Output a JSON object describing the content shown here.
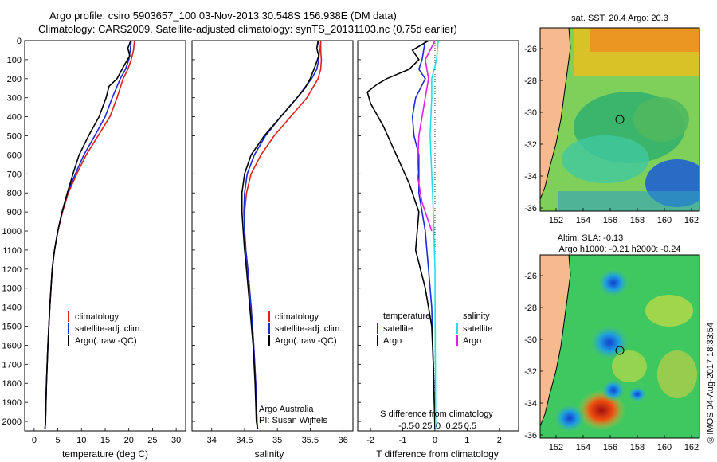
{
  "header": {
    "title_line1": "Argo profile: csiro 5903657_100 03-Nov-2013 30.548S 156.938E (DM data)",
    "title_line2": "Climatology: CARS2009. Satellite-adjusted climatology: synTS_20131103.nc (0.75d earlier)"
  },
  "stamp": "©IMOS 04-Aug-2017 18:33:54",
  "colors": {
    "climatology": "#e0201c",
    "satellite": "#1c2ad8",
    "argo": "#000000",
    "salinity_satellite": "#22e0e6",
    "salinity_argo": "#e020e0",
    "land": "#f7b98e",
    "coast": "#000000"
  },
  "chart_data": [
    {
      "type": "line",
      "name": "temperature-profile",
      "xlabel": "temperature (deg C)",
      "ylabel": "",
      "xlim": [
        -2,
        32
      ],
      "ylim": [
        2050,
        0
      ],
      "x_ticks": [
        0,
        5,
        10,
        15,
        20,
        25,
        30
      ],
      "y_ticks": [
        0,
        100,
        200,
        300,
        400,
        500,
        600,
        700,
        800,
        900,
        1000,
        1100,
        1200,
        1300,
        1400,
        1500,
        1600,
        1700,
        1800,
        1900,
        2000
      ],
      "legend": [
        "climatology",
        "satellite-adj. clim.",
        "Argo(..raw -QC)"
      ],
      "series": [
        {
          "name": "climatology",
          "color_key": "climatology",
          "x": [
            21.2,
            21.0,
            20.5,
            19.8,
            18.8,
            17.5,
            16.0,
            13.5,
            11.0,
            9.0,
            7.2,
            6.0,
            5.0,
            4.3,
            3.8,
            3.3,
            2.9,
            2.6,
            2.4,
            2.3
          ],
          "y": [
            0,
            50,
            100,
            150,
            200,
            300,
            400,
            500,
            600,
            700,
            800,
            900,
            1000,
            1100,
            1200,
            1400,
            1600,
            1800,
            2000,
            2040
          ]
        },
        {
          "name": "satellite-adj. clim.",
          "color_key": "satellite",
          "x": [
            20.5,
            20.3,
            20.0,
            19.3,
            18.2,
            16.5,
            15.0,
            12.8,
            10.5,
            8.7,
            7.0,
            5.9,
            5.0,
            4.3,
            3.8,
            3.3,
            2.9,
            2.6,
            2.4,
            2.3
          ],
          "y": [
            0,
            50,
            100,
            150,
            200,
            300,
            400,
            500,
            600,
            700,
            800,
            900,
            1000,
            1100,
            1200,
            1400,
            1600,
            1800,
            2000,
            2040
          ]
        },
        {
          "name": "Argo",
          "color_key": "argo",
          "x": [
            20.4,
            19.8,
            20.2,
            19.0,
            17.5,
            15.8,
            15.2,
            13.7,
            11.5,
            9.5,
            8.2,
            7.0,
            5.9,
            5.0,
            4.3,
            3.8,
            3.3,
            2.9,
            2.6,
            2.4,
            2.3
          ],
          "y": [
            0,
            40,
            80,
            130,
            200,
            240,
            300,
            400,
            500,
            600,
            700,
            800,
            900,
            1000,
            1100,
            1200,
            1400,
            1600,
            1800,
            2000,
            2040
          ]
        }
      ]
    },
    {
      "type": "line",
      "name": "salinity-profile",
      "xlabel": "salinity",
      "xlim": [
        33.7,
        36.15
      ],
      "ylim": [
        2050,
        0
      ],
      "x_ticks": [
        34,
        34.5,
        35,
        35.5,
        36
      ],
      "legend": [
        "climatology",
        "satellite-adj. clim.",
        "Argo(..raw -QC)"
      ],
      "annotation_line1": "Argo Australia",
      "annotation_line2": "PI: Susan Wijffels",
      "series": [
        {
          "name": "climatology",
          "color_key": "climatology",
          "x": [
            35.66,
            35.66,
            35.67,
            35.66,
            35.62,
            35.45,
            35.2,
            34.95,
            34.75,
            34.6,
            34.53,
            34.5,
            34.5,
            34.52,
            34.55,
            34.6,
            34.64,
            34.67,
            34.69,
            34.7
          ],
          "y": [
            0,
            50,
            100,
            150,
            200,
            300,
            400,
            500,
            600,
            700,
            800,
            900,
            1000,
            1100,
            1200,
            1400,
            1600,
            1800,
            2000,
            2040
          ]
        },
        {
          "name": "satellite-adj. clim.",
          "color_key": "satellite",
          "x": [
            35.63,
            35.64,
            35.63,
            35.6,
            35.52,
            35.3,
            35.05,
            34.82,
            34.65,
            34.54,
            34.5,
            34.49,
            34.5,
            34.52,
            34.55,
            34.6,
            34.64,
            34.67,
            34.69,
            34.7
          ],
          "y": [
            0,
            50,
            100,
            150,
            200,
            300,
            400,
            500,
            600,
            700,
            800,
            900,
            1000,
            1100,
            1200,
            1400,
            1600,
            1800,
            2000,
            2040
          ]
        },
        {
          "name": "Argo",
          "color_key": "argo",
          "x": [
            35.62,
            35.6,
            35.63,
            35.58,
            35.5,
            35.42,
            35.3,
            35.05,
            34.8,
            34.6,
            34.5,
            34.46,
            34.46,
            34.48,
            34.5,
            34.53,
            34.58,
            34.63,
            34.66,
            34.68,
            34.7
          ],
          "y": [
            0,
            40,
            80,
            130,
            200,
            250,
            300,
            400,
            500,
            600,
            700,
            800,
            900,
            1000,
            1100,
            1200,
            1400,
            1600,
            1800,
            2000,
            2040
          ]
        }
      ]
    },
    {
      "type": "line",
      "name": "difference-profile",
      "xlabel": "T difference from climatology",
      "xlabel_top": "S difference from climatology",
      "xlim": [
        -2.4,
        2.6
      ],
      "ylim": [
        2050,
        0
      ],
      "x_ticks_T": [
        -2,
        -1,
        0,
        1,
        2
      ],
      "x_ticks_S_labels": [
        "-0.5",
        "-0.25",
        "0",
        "0.25",
        "0.5"
      ],
      "x_ticks_S_pos": [
        -2,
        -1,
        0,
        1,
        2
      ],
      "legend_temperature": "temperature",
      "legend_salinity": "salinity",
      "legend_satellite": "satellite",
      "legend_argo": "Argo",
      "series": [
        {
          "name": "temperature satellite",
          "color_key": "satellite",
          "x": [
            -0.3,
            -0.4,
            -0.5,
            -0.3,
            -0.6,
            -0.7,
            -0.65,
            -0.5,
            -0.5,
            -0.3,
            -0.2,
            -0.1,
            -0.05,
            0
          ],
          "y": [
            0,
            100,
            150,
            200,
            300,
            400,
            500,
            600,
            800,
            1000,
            1200,
            1400,
            1700,
            2040
          ]
        },
        {
          "name": "temperature Argo",
          "color_key": "argo",
          "x": [
            -0.2,
            -0.7,
            -0.5,
            -0.8,
            -1.5,
            -1.8,
            -2.1,
            -2.0,
            -1.6,
            -1.2,
            -0.8,
            -0.5,
            -0.6,
            -0.3,
            -0.1,
            -0.05,
            0
          ],
          "y": [
            0,
            50,
            100,
            150,
            200,
            230,
            270,
            330,
            450,
            600,
            750,
            900,
            1100,
            1300,
            1500,
            1700,
            2040
          ]
        },
        {
          "name": "salinity satellite",
          "color_key": "salinity_satellite",
          "x": [
            0.1,
            0.05,
            -0.1,
            -0.1,
            -0.15,
            -0.1,
            -0.05,
            0,
            0.02
          ],
          "y": [
            0,
            100,
            200,
            300,
            500,
            700,
            900,
            1200,
            2040
          ]
        },
        {
          "name": "salinity Argo",
          "color_key": "salinity_argo",
          "x": [
            0,
            -0.3,
            -0.2,
            -0.3,
            -0.5,
            -0.55,
            -0.4,
            -0.2,
            -0.1
          ],
          "y": [
            0,
            100,
            200,
            300,
            500,
            700,
            850,
            950,
            1000
          ]
        }
      ]
    }
  ],
  "maps": {
    "sst": {
      "title": "sat. SST: 20.4  Argo: 20.3",
      "y_ticks": [
        "-26",
        "-28",
        "-30",
        "-32",
        "-34",
        "-36"
      ],
      "x_ticks": [
        "152",
        "154",
        "156",
        "158",
        "160",
        "162"
      ]
    },
    "sla": {
      "title_line1": "Altim. SLA: -0.13",
      "title_line2": "Argo h1000: -0.21 h2000: -0.24",
      "y_ticks": [
        "-26",
        "-28",
        "-30",
        "-32",
        "-34",
        "-36"
      ],
      "x_ticks": [
        "152",
        "154",
        "156",
        "158",
        "160",
        "162"
      ]
    }
  }
}
